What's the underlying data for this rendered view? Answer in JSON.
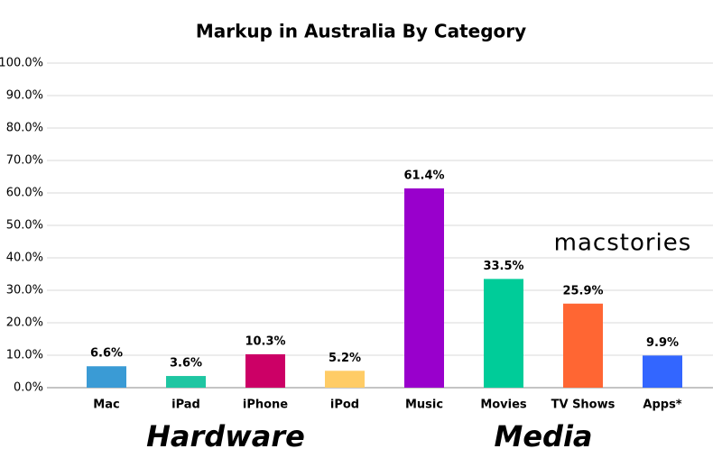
{
  "chart_data": {
    "type": "bar",
    "title": "Markup in Australia By Category",
    "categories": [
      "Mac",
      "iPad",
      "iPhone",
      "iPod",
      "Music",
      "Movies",
      "TV Shows",
      "Apps*"
    ],
    "values": [
      6.6,
      3.6,
      10.3,
      5.2,
      61.4,
      33.5,
      25.9,
      9.9
    ],
    "value_labels": [
      "6.6%",
      "3.6%",
      "10.3%",
      "5.2%",
      "61.4%",
      "33.5%",
      "25.9%",
      "9.9%"
    ],
    "colors": [
      "#3a9bd5",
      "#1fc6a2",
      "#cc0066",
      "#ffcc66",
      "#9900cc",
      "#00cc99",
      "#ff6633",
      "#3366ff"
    ],
    "ylim": [
      0,
      100
    ],
    "yticks": [
      {
        "value": 0,
        "label": "0.0%"
      },
      {
        "value": 10,
        "label": "10.0%"
      },
      {
        "value": 20,
        "label": "20.0%"
      },
      {
        "value": 30,
        "label": "30.0%"
      },
      {
        "value": 40,
        "label": "40.0%"
      },
      {
        "value": 50,
        "label": "50.0%"
      },
      {
        "value": 60,
        "label": "60.0%"
      },
      {
        "value": 70,
        "label": "70.0%"
      },
      {
        "value": 80,
        "label": "80.0%"
      },
      {
        "value": 90,
        "label": "90.0%"
      },
      {
        "value": 100,
        "label": "100.0%"
      }
    ],
    "grid": true,
    "annotations": [
      "Hardware",
      "Media",
      "macstories"
    ]
  }
}
